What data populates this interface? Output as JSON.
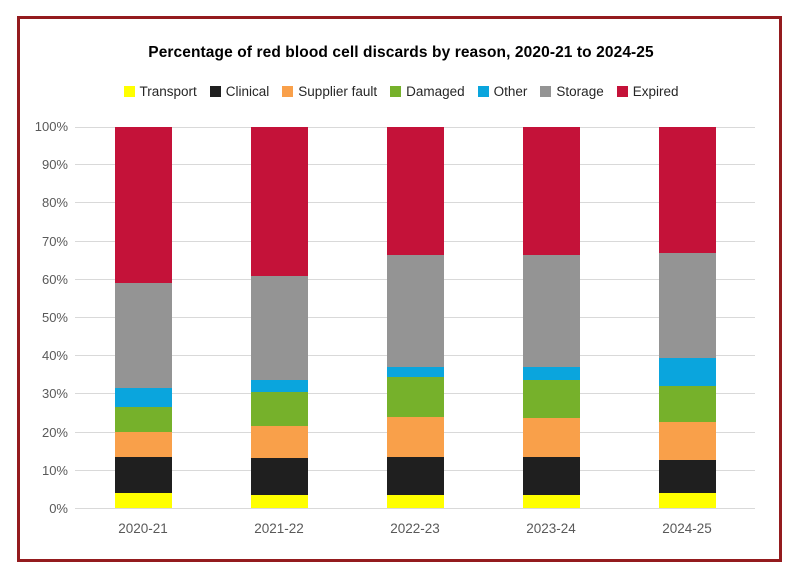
{
  "window": {
    "background_color": "#ffffff",
    "frame_border_color": "#941b1e"
  },
  "title": "Percentage of red blood cell discards by reason, 2020-21 to 2024-25",
  "chart_data": {
    "type": "bar",
    "stacked": true,
    "percent_stacked": true,
    "title": "Percentage of red blood cell discards by reason, 2020-21 to 2024-25",
    "categories": [
      "2020-21",
      "2021-22",
      "2022-23",
      "2023-24",
      "2024-25"
    ],
    "series": [
      {
        "name": "Transport",
        "color": "#ffff00",
        "values": [
          4.0,
          3.5,
          3.5,
          3.5,
          4.0
        ]
      },
      {
        "name": "Clinical",
        "color": "#1f1f1f",
        "values": [
          9.5,
          9.5,
          10.0,
          10.0,
          8.5
        ]
      },
      {
        "name": "Supplier fault",
        "color": "#f9a04a",
        "values": [
          6.5,
          8.5,
          10.5,
          10.0,
          10.0
        ]
      },
      {
        "name": "Damaged",
        "color": "#76b12b",
        "values": [
          6.5,
          9.0,
          10.5,
          10.0,
          9.5
        ]
      },
      {
        "name": "Other",
        "color": "#0aa5dd",
        "values": [
          5.0,
          3.0,
          2.5,
          3.5,
          7.5
        ]
      },
      {
        "name": "Storage",
        "color": "#949494",
        "values": [
          27.5,
          27.5,
          29.5,
          29.5,
          27.5
        ]
      },
      {
        "name": "Expired",
        "color": "#c41239",
        "values": [
          41.0,
          39.0,
          33.5,
          33.5,
          33.0
        ]
      }
    ],
    "xlabel": "",
    "ylabel": "",
    "ylim": [
      0,
      100
    ],
    "ytick_step": 10,
    "ytick_labels": [
      "0%",
      "10%",
      "20%",
      "30%",
      "40%",
      "50%",
      "60%",
      "70%",
      "80%",
      "90%",
      "100%"
    ],
    "grid": true,
    "gridline_color": "#d9d9d9",
    "tick_label_color": "#595959",
    "legend_position": "top"
  }
}
